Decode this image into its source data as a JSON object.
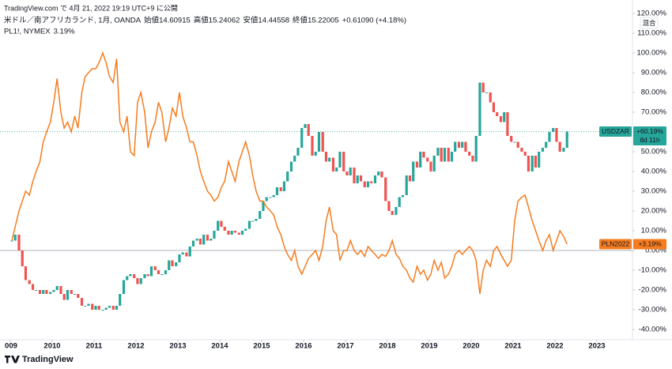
{
  "header": {
    "published": "TradingView.com で 4月 21, 2022 19:19 UTC+9 に公開",
    "symbol": "米ドル／南アフリカランド, 1月, OANDA",
    "ohlc": [
      {
        "label": "始値",
        "value": "14.60915"
      },
      {
        "label": "高値",
        "value": "15.24062"
      },
      {
        "label": "安値",
        "value": "14.44558"
      },
      {
        "label": "終値",
        "value": "15.22005"
      }
    ],
    "change": "+0.61090 (+4.18%)",
    "compare": "PL1!, NYMEX",
    "compare_change": "3.19%",
    "scale_button": "混合",
    "brand": "TradingView"
  },
  "chart_data": {
    "type": "candlestick",
    "grid": false,
    "xlim": [
      2008.755,
      2023.85
    ],
    "ylim": [
      -45.2,
      126.8
    ],
    "xticks": [
      {
        "value": 2009,
        "label": "009"
      },
      2010,
      2011,
      2012,
      2013,
      2014,
      2015,
      2016,
      2017,
      2018,
      2019,
      2020,
      2021,
      2022,
      2023
    ],
    "yticks": [
      {
        "value": 120,
        "label": "120.00%"
      },
      {
        "value": 110,
        "label": "110.00%"
      },
      {
        "value": 100,
        "label": "100.00%"
      },
      {
        "value": 90,
        "label": "90.00%"
      },
      {
        "value": 80,
        "label": "80.00%"
      },
      {
        "value": 70,
        "label": "70.00%"
      },
      {
        "value": 60,
        "label": "60.00%"
      },
      {
        "value": 50,
        "label": "50.00%"
      },
      {
        "value": 40,
        "label": "40.00%"
      },
      {
        "value": 30,
        "label": "30.00%"
      },
      {
        "value": 20,
        "label": "20.00%"
      },
      {
        "value": 10,
        "label": "10.00%"
      },
      {
        "value": 0,
        "label": "0.00%"
      },
      {
        "value": -10,
        "label": "-10.00%"
      },
      {
        "value": -20,
        "label": "-20.00%"
      },
      {
        "value": -30,
        "label": "-30.00%"
      },
      {
        "value": -40,
        "label": "-40.00%"
      }
    ],
    "x": [
      2009,
      2009.08,
      2009.17,
      2009.25,
      2009.33,
      2009.42,
      2009.5,
      2009.58,
      2009.67,
      2009.75,
      2009.83,
      2009.92,
      2010,
      2010.08,
      2010.17,
      2010.25,
      2010.33,
      2010.42,
      2010.5,
      2010.58,
      2010.67,
      2010.75,
      2010.83,
      2010.92,
      2011,
      2011.08,
      2011.17,
      2011.25,
      2011.33,
      2011.42,
      2011.5,
      2011.58,
      2011.67,
      2011.75,
      2011.83,
      2011.92,
      2012,
      2012.08,
      2012.17,
      2012.25,
      2012.33,
      2012.42,
      2012.5,
      2012.58,
      2012.67,
      2012.75,
      2012.83,
      2012.92,
      2013,
      2013.08,
      2013.17,
      2013.25,
      2013.33,
      2013.42,
      2013.5,
      2013.58,
      2013.67,
      2013.75,
      2013.83,
      2013.92,
      2014,
      2014.08,
      2014.17,
      2014.25,
      2014.33,
      2014.42,
      2014.5,
      2014.58,
      2014.67,
      2014.75,
      2014.83,
      2014.92,
      2015,
      2015.08,
      2015.17,
      2015.25,
      2015.33,
      2015.42,
      2015.5,
      2015.58,
      2015.67,
      2015.75,
      2015.83,
      2015.92,
      2016,
      2016.08,
      2016.17,
      2016.25,
      2016.33,
      2016.42,
      2016.5,
      2016.58,
      2016.67,
      2016.75,
      2016.83,
      2016.92,
      2017,
      2017.08,
      2017.17,
      2017.25,
      2017.33,
      2017.42,
      2017.5,
      2017.58,
      2017.67,
      2017.75,
      2017.83,
      2017.92,
      2018,
      2018.08,
      2018.17,
      2018.25,
      2018.33,
      2018.42,
      2018.5,
      2018.58,
      2018.67,
      2018.75,
      2018.83,
      2018.92,
      2019,
      2019.08,
      2019.17,
      2019.25,
      2019.33,
      2019.42,
      2019.5,
      2019.58,
      2019.67,
      2019.75,
      2019.83,
      2019.92,
      2020,
      2020.08,
      2020.17,
      2020.25,
      2020.33,
      2020.42,
      2020.5,
      2020.58,
      2020.67,
      2020.75,
      2020.83,
      2020.92,
      2021,
      2021.08,
      2021.17,
      2021.25,
      2021.33,
      2021.42,
      2021.5,
      2021.58,
      2021.67,
      2021.75,
      2021.83,
      2021.92,
      2022,
      2022.08,
      2022.17,
      2022.25
    ],
    "series": [
      {
        "name": "USDZAR",
        "type": "candlestick",
        "up_color": "#26a69a",
        "down_color": "#ef5350",
        "last_label": "+60.19%",
        "countdown": "8d 11h",
        "values": [
          5,
          8,
          0,
          -8,
          -15,
          -17,
          -20,
          -20,
          -22,
          -20,
          -22,
          -21,
          -20,
          -18,
          -22,
          -25,
          -20,
          -22,
          -22,
          -24,
          -28,
          -28,
          -27,
          -30,
          -28,
          -30,
          -30,
          -29,
          -28,
          -30,
          -28,
          -22,
          -15,
          -13,
          -12,
          -14,
          -17,
          -14,
          -12,
          -13,
          -8,
          -10,
          -12,
          -12,
          -10,
          -5,
          -8,
          -6,
          -2,
          -1,
          -3,
          2,
          5,
          6,
          3,
          8,
          5,
          6,
          10,
          15,
          12,
          10,
          8,
          10,
          9,
          8,
          10,
          11,
          15,
          15,
          16,
          20,
          25,
          27,
          27,
          28,
          32,
          30,
          35,
          40,
          45,
          48,
          52,
          62,
          64,
          58,
          48,
          50,
          60,
          50,
          45,
          47,
          40,
          42,
          50,
          40,
          38,
          42,
          34,
          38,
          35,
          32,
          35,
          34,
          38,
          40,
          37,
          25,
          20,
          18,
          22,
          27,
          28,
          38,
          35,
          45,
          42,
          50,
          47,
          45,
          40,
          48,
          52,
          45,
          52,
          45,
          50,
          55,
          52,
          55,
          50,
          48,
          45,
          58,
          85,
          80,
          80,
          75,
          70,
          68,
          65,
          70,
          58,
          55,
          55,
          52,
          50,
          48,
          40,
          48,
          42,
          50,
          52,
          55,
          60,
          62,
          55,
          50,
          52,
          60.19
        ]
      },
      {
        "name": "PLN2022",
        "type": "line",
        "color": "#f57c1f",
        "last_label": "+3.19%",
        "values": [
          5,
          12,
          20,
          25,
          30,
          28,
          35,
          40,
          45,
          55,
          60,
          65,
          75,
          87,
          70,
          62,
          65,
          60,
          68,
          62,
          80,
          88,
          90,
          92,
          92,
          95,
          100,
          95,
          88,
          85,
          97,
          65,
          60,
          68,
          50,
          48,
          75,
          80,
          70,
          52,
          60,
          65,
          75,
          70,
          55,
          62,
          72,
          68,
          80,
          68,
          62,
          55,
          55,
          48,
          40,
          35,
          30,
          28,
          25,
          27,
          32,
          35,
          45,
          40,
          35,
          45,
          50,
          55,
          48,
          38,
          30,
          25,
          25,
          22,
          20,
          18,
          12,
          8,
          2,
          -2,
          -5,
          0,
          -8,
          -12,
          -8,
          -4,
          -2,
          0,
          -5,
          2,
          15,
          22,
          10,
          8,
          -5,
          0,
          0,
          5,
          0,
          -2,
          0,
          -3,
          2,
          0,
          -2,
          -4,
          -2,
          -3,
          0,
          5,
          -2,
          -4,
          -8,
          -10,
          -14,
          -16,
          -8,
          -12,
          -10,
          -15,
          -12,
          -5,
          -10,
          -6,
          -14,
          -12,
          -8,
          -2,
          0,
          -2,
          0,
          2,
          0,
          -5,
          -22,
          -10,
          -5,
          -8,
          0,
          2,
          -2,
          -5,
          -8,
          -5,
          15,
          25,
          27,
          28,
          22,
          15,
          10,
          5,
          0,
          5,
          8,
          0,
          5,
          10,
          7,
          3.19
        ]
      }
    ]
  }
}
